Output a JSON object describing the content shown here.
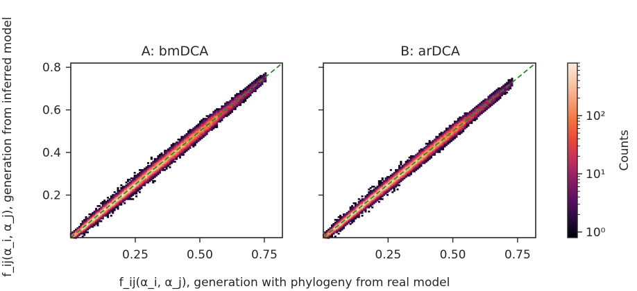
{
  "chart_data": {
    "type": "heatmap",
    "xlabel": "f_ij(α_i, α_j), generation with phylogeny from real model",
    "ylabel": "f_ij(α_i, α_j), generation from inferred model",
    "xlim": [
      0,
      0.82
    ],
    "ylim": [
      0,
      0.82
    ],
    "colorbar": {
      "label": "Counts",
      "scale": "log",
      "range": [
        0.8,
        800
      ],
      "ticks": [
        {
          "value": 1,
          "label": "10⁰"
        },
        {
          "value": 10,
          "label": "10¹"
        },
        {
          "value": 100,
          "label": "10²"
        }
      ],
      "colormap": [
        "#000004",
        "#2b0b3e",
        "#5b1060",
        "#8c1d65",
        "#c2305c",
        "#e6463a",
        "#f5703f",
        "#f79d75",
        "#f9c8a9",
        "#faebdd"
      ]
    },
    "reference_line": {
      "style": "dashed",
      "color": "#228b22",
      "from": [
        0,
        0
      ],
      "to": [
        0.82,
        0.82
      ]
    },
    "panels": [
      {
        "title": "A: bmDCA",
        "xticks": [
          {
            "value": 0.25,
            "label": "0.25"
          },
          {
            "value": 0.5,
            "label": "0.50"
          },
          {
            "value": 0.75,
            "label": "0.75"
          }
        ],
        "yticks": [
          {
            "value": 0.2,
            "label": "0.2"
          },
          {
            "value": 0.4,
            "label": "0.4"
          },
          {
            "value": 0.6,
            "label": "0.6"
          },
          {
            "value": 0.8,
            "label": "0.8"
          }
        ],
        "density_band": {
          "x_end": 0.76,
          "spread": 0.016,
          "peak_count": 700
        }
      },
      {
        "title": "B: arDCA",
        "xticks": [
          {
            "value": 0.25,
            "label": "0.25"
          },
          {
            "value": 0.5,
            "label": "0.50"
          },
          {
            "value": 0.75,
            "label": "0.75"
          }
        ],
        "yticks": [
          {
            "value": 0.2,
            "label": ""
          },
          {
            "value": 0.4,
            "label": ""
          },
          {
            "value": 0.6,
            "label": ""
          },
          {
            "value": 0.8,
            "label": ""
          }
        ],
        "density_band": {
          "x_end": 0.73,
          "spread": 0.015,
          "peak_count": 700
        }
      }
    ]
  }
}
